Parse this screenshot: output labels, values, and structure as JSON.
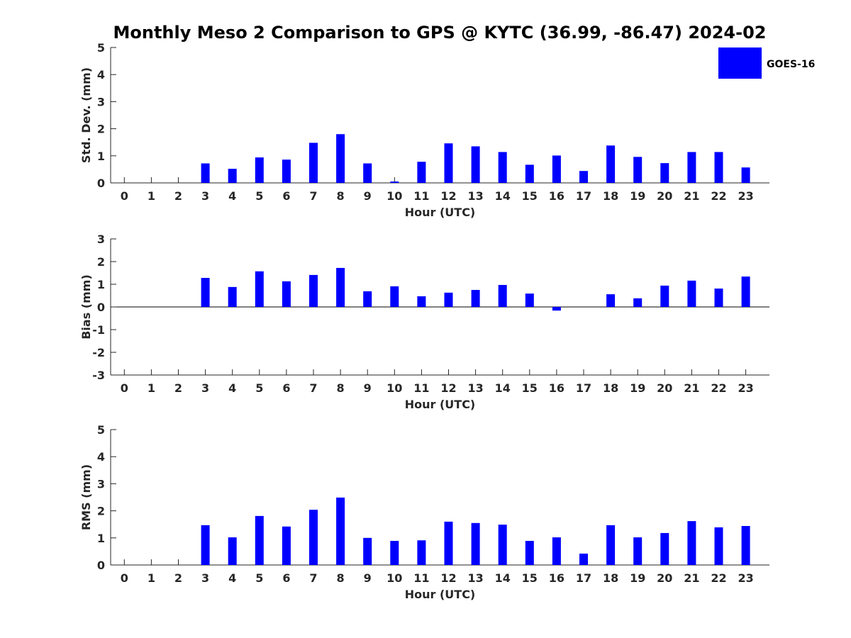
{
  "title": "Monthly Meso 2 Comparison to GPS @ KYTC (36.99, -86.47) 2024-02",
  "legend": {
    "label": "GOES-16",
    "color": "#0000ff",
    "placement": "top-right"
  },
  "chart_data": [
    {
      "type": "bar",
      "ylabel": "Std. Dev. (mm)",
      "xlabel": "Hour (UTC)",
      "ylim": [
        0,
        5
      ],
      "yticks": [
        0,
        1,
        2,
        3,
        4,
        5
      ],
      "grid": false,
      "categories": [
        "0",
        "1",
        "2",
        "3",
        "4",
        "5",
        "6",
        "7",
        "8",
        "9",
        "10",
        "11",
        "12",
        "13",
        "14",
        "15",
        "16",
        "17",
        "18",
        "19",
        "20",
        "21",
        "22",
        "23"
      ],
      "series": [
        {
          "name": "GOES-16",
          "color": "#0000ff",
          "values": [
            null,
            null,
            null,
            0.72,
            0.52,
            0.94,
            0.86,
            1.48,
            1.8,
            0.72,
            0.05,
            0.78,
            1.46,
            1.35,
            1.14,
            0.67,
            1.01,
            0.44,
            1.38,
            0.96,
            0.73,
            1.14,
            1.14,
            0.57
          ]
        }
      ]
    },
    {
      "type": "bar",
      "ylabel": "Bias (mm)",
      "xlabel": "Hour (UTC)",
      "ylim": [
        -3,
        3
      ],
      "yticks": [
        -3,
        -2,
        -1,
        0,
        1,
        2,
        3
      ],
      "zero_line": true,
      "grid": false,
      "categories": [
        "0",
        "1",
        "2",
        "3",
        "4",
        "5",
        "6",
        "7",
        "8",
        "9",
        "10",
        "11",
        "12",
        "13",
        "14",
        "15",
        "16",
        "17",
        "18",
        "19",
        "20",
        "21",
        "22",
        "23"
      ],
      "series": [
        {
          "name": "GOES-16",
          "color": "#0000ff",
          "values": [
            null,
            null,
            null,
            1.28,
            0.88,
            1.57,
            1.13,
            1.41,
            1.72,
            0.69,
            0.91,
            0.47,
            0.63,
            0.75,
            0.97,
            0.59,
            -0.16,
            null,
            0.56,
            0.38,
            0.94,
            1.16,
            0.81,
            1.34
          ]
        }
      ]
    },
    {
      "type": "bar",
      "ylabel": "RMS (mm)",
      "xlabel": "Hour (UTC)",
      "ylim": [
        0,
        5
      ],
      "yticks": [
        0,
        1,
        2,
        3,
        4,
        5
      ],
      "grid": false,
      "categories": [
        "0",
        "1",
        "2",
        "3",
        "4",
        "5",
        "6",
        "7",
        "8",
        "9",
        "10",
        "11",
        "12",
        "13",
        "14",
        "15",
        "16",
        "17",
        "18",
        "19",
        "20",
        "21",
        "22",
        "23"
      ],
      "series": [
        {
          "name": "GOES-16",
          "color": "#0000ff",
          "values": [
            null,
            null,
            null,
            1.47,
            1.02,
            1.81,
            1.42,
            2.04,
            2.49,
            1.0,
            0.89,
            0.91,
            1.6,
            1.55,
            1.49,
            0.89,
            1.02,
            0.42,
            1.47,
            1.02,
            1.18,
            1.62,
            1.39,
            1.44
          ]
        }
      ]
    }
  ]
}
